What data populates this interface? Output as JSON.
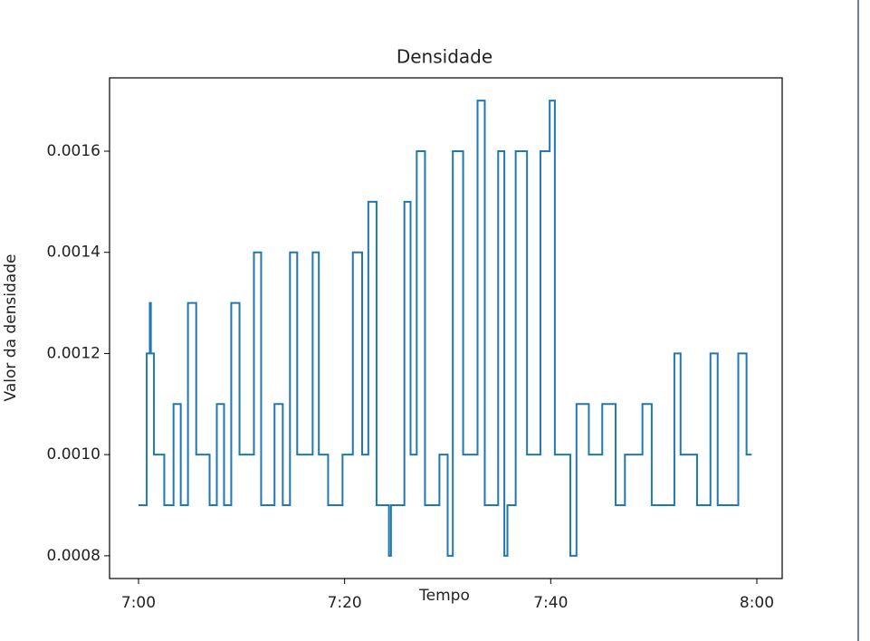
{
  "chart_data": {
    "type": "step",
    "title": "Densidade",
    "x_label": "Tempo",
    "y_label": "Valor da densidade",
    "color": "#1f77b4",
    "x": [
      0,
      0.8,
      1.1,
      1.2,
      1.5,
      2.5,
      3.4,
      4.1,
      4.8,
      5.6,
      6.9,
      7.6,
      8.3,
      9.0,
      9.8,
      11.2,
      11.9,
      13.2,
      14.0,
      14.7,
      15.4,
      16.9,
      17.5,
      18.4,
      19.8,
      20.8,
      21.7,
      22.3,
      23.1,
      24.3,
      24.5,
      25.8,
      26.4,
      27.0,
      27.8,
      29.2,
      30.0,
      30.5,
      31.5,
      32.9,
      33.6,
      34.9,
      35.5,
      35.8,
      36.6,
      37.7,
      39.0,
      39.9,
      40.4,
      41.9,
      42.5,
      43.7,
      45.0,
      46.3,
      47.2,
      48.9,
      49.8,
      52.0,
      52.6,
      54.2,
      55.5,
      56.2,
      58.2,
      59.0,
      59.5
    ],
    "values": [
      0.0009,
      0.0012,
      0.0013,
      0.0012,
      0.001,
      0.0009,
      0.0011,
      0.0009,
      0.0013,
      0.001,
      0.0009,
      0.0011,
      0.0009,
      0.0013,
      0.001,
      0.0014,
      0.0009,
      0.0011,
      0.0009,
      0.0014,
      0.001,
      0.0014,
      0.001,
      0.0009,
      0.001,
      0.0014,
      0.001,
      0.0015,
      0.0009,
      0.0008,
      0.0009,
      0.0015,
      0.001,
      0.0016,
      0.0009,
      0.001,
      0.0008,
      0.0016,
      0.001,
      0.0017,
      0.0009,
      0.0016,
      0.0008,
      0.0009,
      0.0016,
      0.001,
      0.0016,
      0.0017,
      0.001,
      0.0008,
      0.0011,
      0.001,
      0.0011,
      0.0009,
      0.001,
      0.0011,
      0.0009,
      0.0012,
      0.001,
      0.0009,
      0.0012,
      0.0009,
      0.0012,
      0.001,
      0.001
    ],
    "xlim": [
      -2.81,
      62.46
    ],
    "xticks": [
      {
        "value": 0,
        "label": "7:00"
      },
      {
        "value": 20,
        "label": "7:20"
      },
      {
        "value": 40,
        "label": "7:40"
      },
      {
        "value": 60,
        "label": "8:00"
      }
    ],
    "ylim": [
      0.000755,
      0.001745
    ],
    "yticks": [
      {
        "value": 0.0008,
        "label": "0.0008"
      },
      {
        "value": 0.001,
        "label": "0.0010"
      },
      {
        "value": 0.0012,
        "label": "0.0012"
      },
      {
        "value": 0.0014,
        "label": "0.0014"
      },
      {
        "value": 0.0016,
        "label": "0.0016"
      }
    ]
  }
}
